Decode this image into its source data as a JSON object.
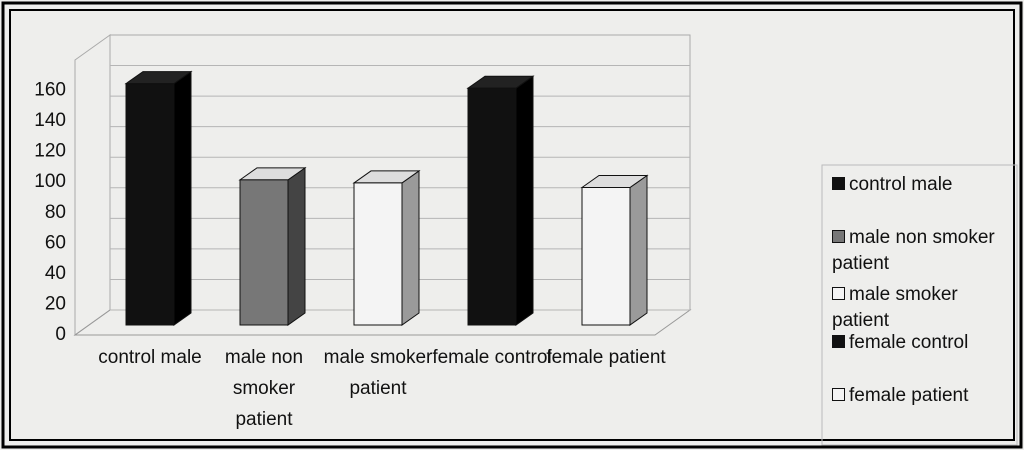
{
  "chart_data": {
    "type": "bar3d",
    "categories": [
      "control male",
      "male non smoker patient",
      "male smoker patient",
      "female control",
      "female patient"
    ],
    "values": [
      158,
      95,
      93,
      155,
      90
    ],
    "colors": [
      "#111111",
      "#777777",
      "#f4f4f4",
      "#111111",
      "#f4f4f4"
    ],
    "ylim": [
      0,
      180
    ],
    "yticks": [
      0,
      20,
      40,
      60,
      80,
      100,
      120,
      140,
      160
    ],
    "grid": true,
    "legend": "right"
  }
}
